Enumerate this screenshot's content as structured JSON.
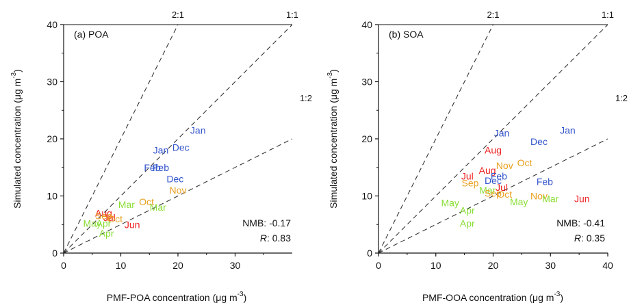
{
  "chart_data": [
    {
      "type": "scatter",
      "panel_label": "(a) POA",
      "xlabel": "PMF-POA concentration (μg m",
      "ylabel": "Simulated concentration (μg m",
      "unit_superscript": "-3",
      "xlim": [
        0,
        40
      ],
      "ylim": [
        0,
        40
      ],
      "x_ticks": [
        0,
        10,
        20,
        30
      ],
      "y_ticks": [
        0,
        10,
        20,
        30,
        40
      ],
      "grid": false,
      "reference_lines": [
        {
          "label": "2:1",
          "slope": 2
        },
        {
          "label": "1:1",
          "slope": 1
        },
        {
          "label": "1:2",
          "slope": 0.5
        }
      ],
      "stats": {
        "nmb_label": "NMB:",
        "nmb": "-0.17",
        "r_label": "R",
        "r": "0.83"
      },
      "points": [
        {
          "label": "Jan",
          "x": 23.5,
          "y": 21.5,
          "color": "#3355cc"
        },
        {
          "label": "Dec",
          "x": 20.5,
          "y": 18.5,
          "color": "#3355cc"
        },
        {
          "label": "Jan",
          "x": 17.0,
          "y": 18.0,
          "color": "#3355cc"
        },
        {
          "label": "Feb",
          "x": 15.5,
          "y": 15.0,
          "color": "#3355cc"
        },
        {
          "label": "Feb",
          "x": 17.0,
          "y": 15.0,
          "color": "#3355cc"
        },
        {
          "label": "Dec",
          "x": 19.5,
          "y": 13.0,
          "color": "#3355cc"
        },
        {
          "label": "Nov",
          "x": 20.0,
          "y": 11.0,
          "color": "#e8a020"
        },
        {
          "label": "Oct",
          "x": 14.5,
          "y": 9.0,
          "color": "#e8a020"
        },
        {
          "label": "Mar",
          "x": 11.0,
          "y": 8.5,
          "color": "#88dd33"
        },
        {
          "label": "Mar",
          "x": 16.5,
          "y": 8.0,
          "color": "#88dd33"
        },
        {
          "label": "Aug",
          "x": 7.0,
          "y": 7.0,
          "color": "#ee2222"
        },
        {
          "label": "Sep",
          "x": 7.0,
          "y": 6.5,
          "color": "#e8a020"
        },
        {
          "label": "Jul",
          "x": 8.0,
          "y": 6.2,
          "color": "#ee2222"
        },
        {
          "label": "Oct",
          "x": 9.0,
          "y": 6.0,
          "color": "#e8a020"
        },
        {
          "label": "Jun",
          "x": 12.0,
          "y": 5.0,
          "color": "#ee2222"
        },
        {
          "label": "May",
          "x": 5.0,
          "y": 5.2,
          "color": "#88dd33"
        },
        {
          "label": "Apr",
          "x": 7.0,
          "y": 5.2,
          "color": "#88dd33"
        },
        {
          "label": "Apr",
          "x": 7.5,
          "y": 3.5,
          "color": "#88dd33"
        }
      ]
    },
    {
      "type": "scatter",
      "panel_label": "(b) SOA",
      "xlabel": "PMF-OOA concentration (μg m",
      "ylabel": "Simulated concentration (μg m",
      "unit_superscript": "-3",
      "xlim": [
        0,
        40
      ],
      "ylim": [
        0,
        40
      ],
      "x_ticks": [
        0,
        10,
        20,
        30,
        40
      ],
      "y_ticks": [
        0,
        10,
        20,
        30,
        40
      ],
      "grid": false,
      "reference_lines": [
        {
          "label": "2:1",
          "slope": 2
        },
        {
          "label": "1:1",
          "slope": 1
        },
        {
          "label": "1:2",
          "slope": 0.5
        }
      ],
      "stats": {
        "nmb_label": "NMB:",
        "nmb": "-0.41",
        "r_label": "R",
        "r": "0.35"
      },
      "points": [
        {
          "label": "Jan",
          "x": 33.0,
          "y": 21.5,
          "color": "#3355cc"
        },
        {
          "label": "Dec",
          "x": 28.0,
          "y": 19.5,
          "color": "#3355cc"
        },
        {
          "label": "Jan",
          "x": 21.5,
          "y": 21.0,
          "color": "#3355cc"
        },
        {
          "label": "Aug",
          "x": 20.0,
          "y": 18.0,
          "color": "#ee2222"
        },
        {
          "label": "Nov",
          "x": 22.0,
          "y": 15.3,
          "color": "#e8a020"
        },
        {
          "label": "Oct",
          "x": 25.5,
          "y": 15.8,
          "color": "#e8a020"
        },
        {
          "label": "Aug",
          "x": 19.0,
          "y": 14.5,
          "color": "#ee2222"
        },
        {
          "label": "Feb",
          "x": 21.0,
          "y": 13.5,
          "color": "#3355cc"
        },
        {
          "label": "Dec",
          "x": 20.0,
          "y": 12.7,
          "color": "#3355cc"
        },
        {
          "label": "Jul",
          "x": 15.5,
          "y": 13.5,
          "color": "#ee2222"
        },
        {
          "label": "Jul",
          "x": 21.5,
          "y": 11.5,
          "color": "#ee2222"
        },
        {
          "label": "Sep",
          "x": 16.0,
          "y": 12.3,
          "color": "#e8a020"
        },
        {
          "label": "Feb",
          "x": 29.0,
          "y": 12.5,
          "color": "#3355cc"
        },
        {
          "label": "Mar",
          "x": 19.0,
          "y": 11.0,
          "color": "#88dd33"
        },
        {
          "label": "Sep",
          "x": 20.0,
          "y": 10.5,
          "color": "#e8a020"
        },
        {
          "label": "Oct",
          "x": 22.0,
          "y": 10.3,
          "color": "#e8a020"
        },
        {
          "label": "Nov",
          "x": 28.0,
          "y": 10.0,
          "color": "#e8a020"
        },
        {
          "label": "Mar",
          "x": 30.0,
          "y": 9.5,
          "color": "#88dd33"
        },
        {
          "label": "May",
          "x": 24.5,
          "y": 9.0,
          "color": "#88dd33"
        },
        {
          "label": "Jun",
          "x": 35.5,
          "y": 9.5,
          "color": "#ee2222"
        },
        {
          "label": "May",
          "x": 12.5,
          "y": 8.8,
          "color": "#88dd33"
        },
        {
          "label": "Apr",
          "x": 15.5,
          "y": 7.5,
          "color": "#88dd33"
        },
        {
          "label": "Apr",
          "x": 15.5,
          "y": 5.2,
          "color": "#88dd33"
        }
      ]
    }
  ]
}
